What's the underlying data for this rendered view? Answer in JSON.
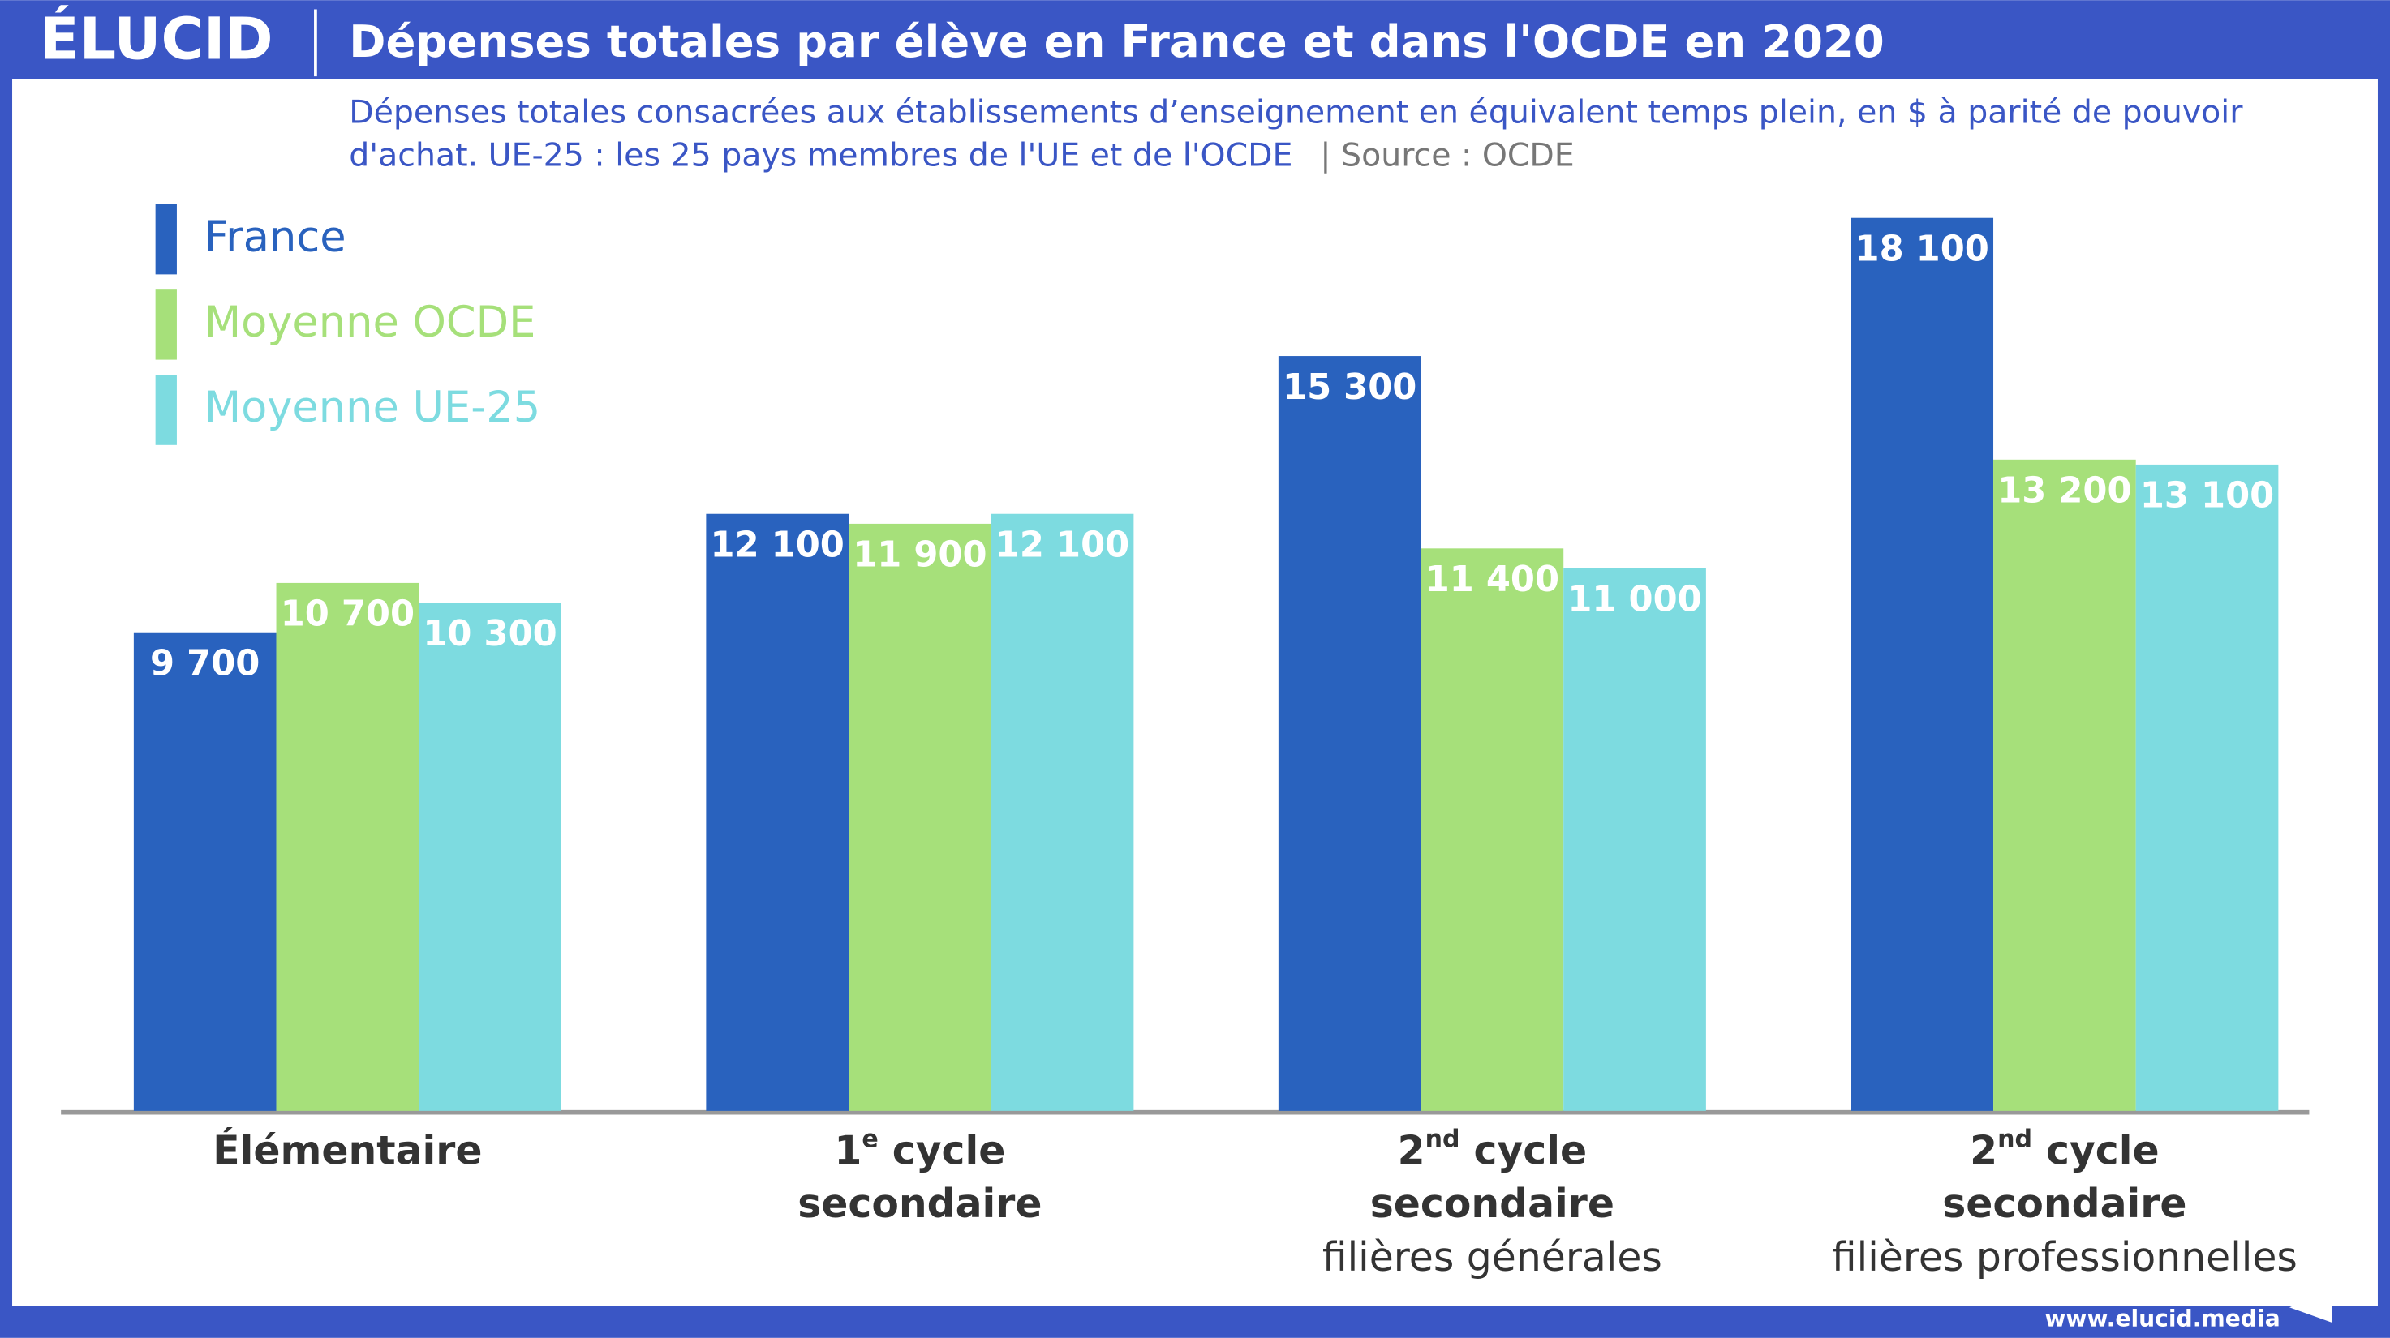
{
  "brand": "ÉLUCID",
  "footer": "www.elucid.media",
  "chart_data": {
    "type": "bar",
    "title": "Dépenses totales par élève en France et dans l'OCDE en 2020",
    "subtitle": [
      "Dépenses totales consacrées aux établissements d’enseignement en équivalent temps plein, en $ à parité de pouvoir",
      "d'achat. UE-25 : les 25 pays membres de l'UE et de l'OCDE"
    ],
    "source": "|  Source : OCDE",
    "categories": [
      {
        "lines": [
          [
            "Élémentaire"
          ]
        ]
      },
      {
        "lines": [
          [
            "1",
            "e",
            " cycle"
          ],
          [
            "secondaire"
          ]
        ]
      },
      {
        "lines": [
          [
            "2",
            "nd",
            " cycle"
          ],
          [
            "secondaire"
          ]
        ],
        "note": "filières générales"
      },
      {
        "lines": [
          [
            "2",
            "nd",
            " cycle"
          ],
          [
            "secondaire"
          ]
        ],
        "note": "filières professionnelles"
      }
    ],
    "series": [
      {
        "name": "France",
        "color": "#2962be",
        "values": [
          9700,
          12100,
          15300,
          18100
        ],
        "value_labels": [
          "9 700",
          "12 100",
          "15 300",
          "18 100"
        ]
      },
      {
        "name": "Moyenne OCDE",
        "color": "#a6e07a",
        "values": [
          10700,
          11900,
          11400,
          13200
        ],
        "value_labels": [
          "10 700",
          "11 900",
          "11 400",
          "13 200"
        ]
      },
      {
        "name": "Moyenne UE-25",
        "color": "#7ddbe0",
        "values": [
          10300,
          12100,
          11000,
          13100
        ],
        "value_labels": [
          "10 300",
          "12 100",
          "11 000",
          "13 100"
        ]
      }
    ],
    "ylim": [
      0,
      20000
    ]
  }
}
